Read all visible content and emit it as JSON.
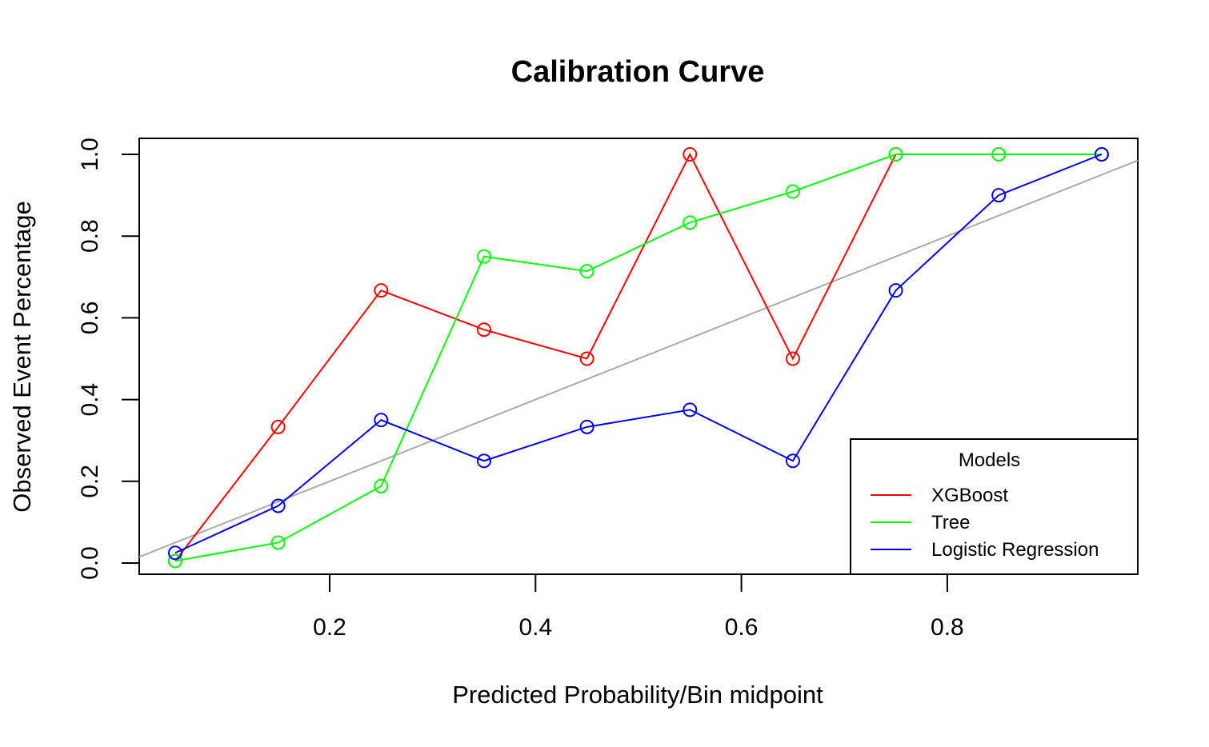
{
  "chart_data": {
    "type": "line",
    "title": "Calibration Curve",
    "xlabel": "Predicted Probability/Bin midpoint",
    "ylabel": "Observed Event Percentage",
    "xlim": [
      0.017,
      0.983
    ],
    "ylim": [
      -0.028,
      1.0
    ],
    "x_ticks": [
      0.2,
      0.4,
      0.6,
      0.8
    ],
    "x_tick_labels": [
      "0.2",
      "0.4",
      "0.6",
      "0.8"
    ],
    "y_ticks": [
      0.0,
      0.2,
      0.4,
      0.6,
      0.8,
      1.0
    ],
    "y_tick_labels": [
      "0.0",
      "0.2",
      "0.4",
      "0.6",
      "0.8",
      "1.0"
    ],
    "grid": false,
    "reference_line": {
      "description": "perfect calibration diagonal",
      "color": "#aaaaaa"
    },
    "legend": {
      "title": "Models",
      "position": "bottom-right"
    },
    "series": [
      {
        "name": "XGBoost",
        "color": "#ff0000",
        "x": [
          0.05,
          0.15,
          0.25,
          0.35,
          0.45,
          0.55,
          0.65,
          0.75,
          0.85,
          0.95
        ],
        "y": [
          0.005,
          0.333,
          0.667,
          0.571,
          0.5,
          1.0,
          0.5,
          1.0,
          1.0,
          1.0
        ]
      },
      {
        "name": "Tree",
        "color": "#00ff00",
        "x": [
          0.05,
          0.15,
          0.25,
          0.35,
          0.45,
          0.55,
          0.65,
          0.75,
          0.85,
          0.95
        ],
        "y": [
          0.005,
          0.05,
          0.188,
          0.75,
          0.714,
          0.833,
          0.909,
          1.0,
          1.0,
          1.0
        ]
      },
      {
        "name": "Logistic Regression",
        "color": "#0000ff",
        "x": [
          0.05,
          0.15,
          0.25,
          0.35,
          0.45,
          0.55,
          0.65,
          0.75,
          0.85,
          0.95
        ],
        "y": [
          0.025,
          0.14,
          0.35,
          0.25,
          0.333,
          0.375,
          0.25,
          0.667,
          0.9,
          1.0
        ]
      }
    ]
  }
}
